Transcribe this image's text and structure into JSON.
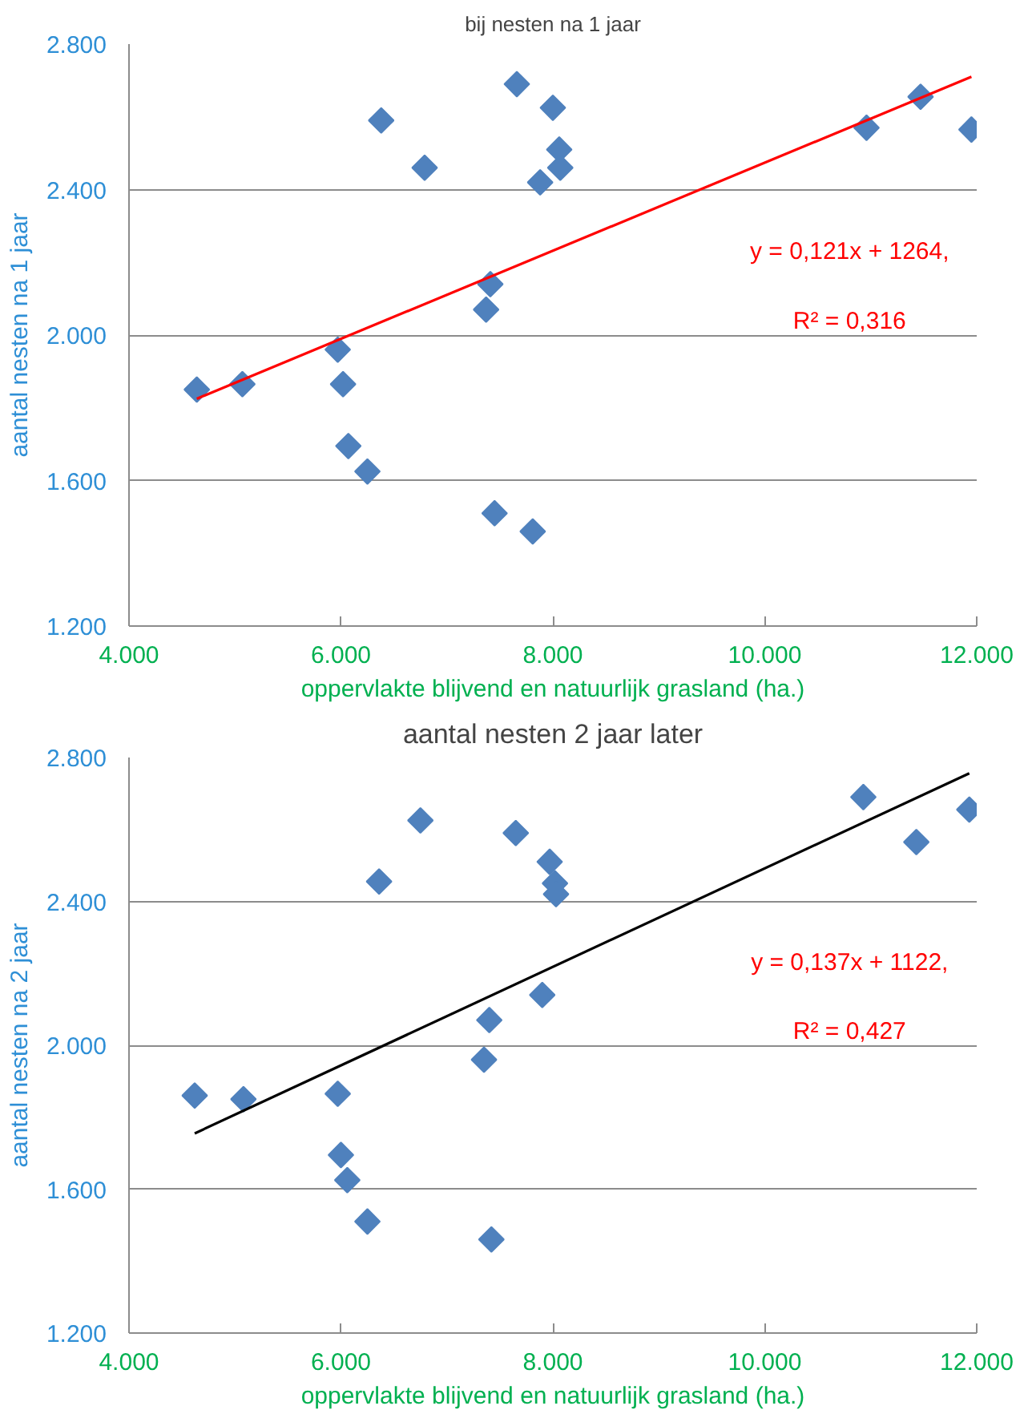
{
  "chart_data": [
    {
      "type": "scatter",
      "title": "bij nesten na 1 jaar",
      "xlabel": "oppervlakte blijvend en natuurlijk grasland (ha.)",
      "ylabel": "aantal nesten na 1 jaar",
      "marker": "diamond",
      "grid": "y",
      "xlim": [
        4000,
        12000
      ],
      "ylim": [
        1200,
        2800
      ],
      "xticks": [
        {
          "value": 4000,
          "label": "4.000"
        },
        {
          "value": 6000,
          "label": "6.000"
        },
        {
          "value": 8000,
          "label": "8.000"
        },
        {
          "value": 10000,
          "label": "10.000"
        },
        {
          "value": 12000,
          "label": "12.000"
        }
      ],
      "yticks": [
        {
          "value": 1200,
          "label": "1.200"
        },
        {
          "value": 1600,
          "label": "1.600"
        },
        {
          "value": 2000,
          "label": "2.000"
        },
        {
          "value": 2400,
          "label": "2.400"
        },
        {
          "value": 2800,
          "label": "2.800"
        }
      ],
      "annotations": [
        "y = 0,121x + 1264,",
        "R² = 0,316"
      ],
      "series": [
        {
          "color": "#4f81bd",
          "x": [
            4640,
            5070,
            5970,
            6020,
            6070,
            6250,
            6380,
            6790,
            7370,
            7410,
            7450,
            7660,
            7810,
            7880,
            8000,
            8060,
            8070,
            10960,
            11470,
            11950
          ],
          "values": [
            1850,
            1865,
            1960,
            1865,
            1695,
            1625,
            2590,
            2460,
            2070,
            2140,
            1510,
            2690,
            1460,
            2420,
            2625,
            2510,
            2460,
            2570,
            2655,
            2565
          ]
        },
        {
          "type": "line",
          "color": "#ff0000",
          "marker": "none",
          "x": [
            4640,
            11950
          ],
          "values": [
            1825,
            2710
          ]
        }
      ]
    },
    {
      "type": "scatter",
      "title": "aantal nesten 2 jaar later",
      "xlabel": "oppervlakte blijvend en natuurlijk grasland (ha.)",
      "ylabel": "aantal nesten na 2 jaar",
      "marker": "diamond",
      "grid": "y",
      "xlim": [
        4000,
        12000
      ],
      "ylim": [
        1200,
        2800
      ],
      "xticks": [
        {
          "value": 4000,
          "label": "4.000"
        },
        {
          "value": 6000,
          "label": "6.000"
        },
        {
          "value": 8000,
          "label": "8.000"
        },
        {
          "value": 10000,
          "label": "10.000"
        },
        {
          "value": 12000,
          "label": "12.000"
        }
      ],
      "yticks": [
        {
          "value": 1200,
          "label": "1.200"
        },
        {
          "value": 1600,
          "label": "1.600"
        },
        {
          "value": 2000,
          "label": "2.000"
        },
        {
          "value": 2400,
          "label": "2.400"
        },
        {
          "value": 2800,
          "label": "2.800"
        }
      ],
      "annotations": [
        "y = 0,137x + 1122,",
        "R² = 0,427"
      ],
      "series": [
        {
          "color": "#4f81bd",
          "x": [
            4620,
            5080,
            5970,
            6000,
            6060,
            6250,
            6360,
            6750,
            7350,
            7400,
            7420,
            7650,
            7900,
            7970,
            8020,
            8030,
            10930,
            11430,
            11930
          ],
          "values": [
            1860,
            1850,
            1865,
            1695,
            1625,
            1510,
            2455,
            2625,
            1960,
            2070,
            1460,
            2590,
            2140,
            2510,
            2450,
            2420,
            2690,
            2565,
            2655
          ]
        },
        {
          "type": "line",
          "color": "#000000",
          "marker": "none",
          "x": [
            4620,
            11930
          ],
          "values": [
            1755,
            2756
          ]
        }
      ]
    }
  ]
}
